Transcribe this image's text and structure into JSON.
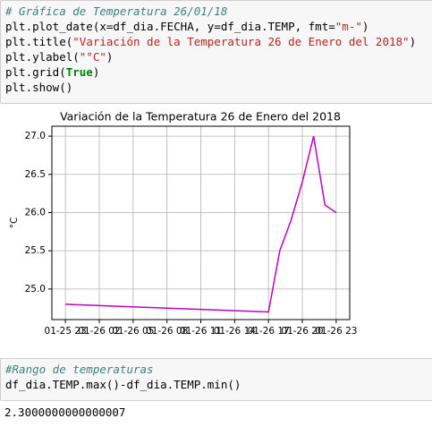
{
  "code_cells": [
    {
      "lines": [
        [
          "# Gráfica de Temperatura 26/01/18"
        ],
        [
          "plt.plot_date(x=df_dia.FECHA, y=df_dia.TEMP, fmt=",
          "\"m-\"",
          ")"
        ],
        [
          "plt.title(",
          "\"Variación de la Temperatura 26 de Enero del 2018\"",
          ")"
        ],
        [
          "plt.ylabel(",
          "\"°C\"",
          ")"
        ],
        [
          "plt.grid(",
          "True",
          ")"
        ],
        [
          "plt.show()"
        ]
      ]
    },
    {
      "lines": [
        [
          "#Rango de temperaturas"
        ],
        [
          "df_dia.TEMP.max()-df_dia.TEMP.min()"
        ]
      ]
    }
  ],
  "chart_data": {
    "type": "line",
    "title": "Variación de la Temperatura 26 de Enero del 2018",
    "ylabel": "°C",
    "x": [
      "01-25 23",
      "01-26 17",
      "01-26 18",
      "01-26 19",
      "01-26 20",
      "01-26 21",
      "01-26 22",
      "01-26 23"
    ],
    "series": [
      {
        "color": "#bf00bf",
        "values": [
          24.8,
          24.7,
          25.5,
          25.9,
          26.4,
          27.0,
          26.1,
          26.0
        ]
      }
    ],
    "xlim": [
      "01-25 21:48",
      "01-27 00:12"
    ],
    "xticks": [
      "01-25 23",
      "01-26 02",
      "01-26 05",
      "01-26 08",
      "01-26 11",
      "01-26 14",
      "01-26 17",
      "01-26 20",
      "01-26 23"
    ],
    "ylim": [
      24.6,
      27.13
    ],
    "yticks": [
      {
        "value": 25,
        "label": "25.0"
      },
      {
        "value": 25.5,
        "label": "25.5"
      },
      {
        "value": 26,
        "label": "26.0"
      },
      {
        "value": 26.5,
        "label": "26.5"
      },
      {
        "value": 27,
        "label": "27.0"
      }
    ],
    "grid": true
  },
  "output": {
    "text": "2.3000000000000007"
  }
}
